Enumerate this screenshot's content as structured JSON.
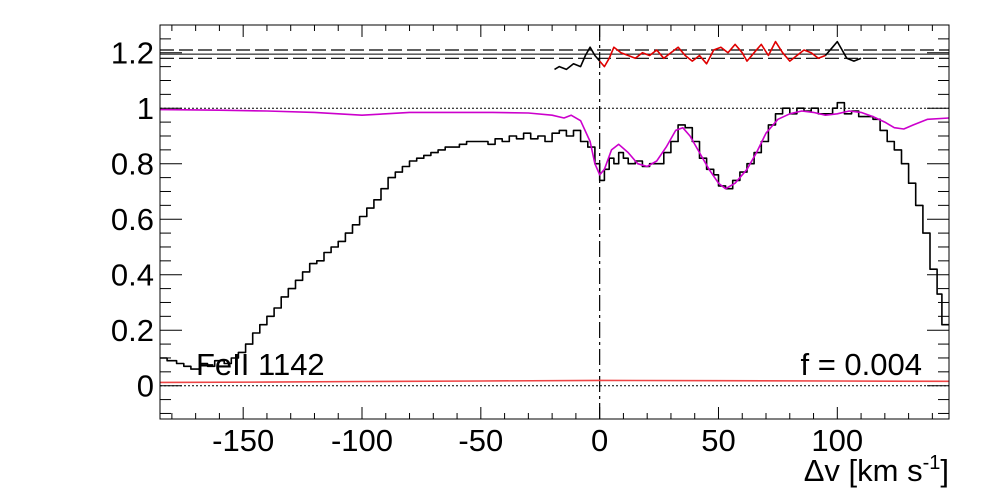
{
  "chart_data": {
    "type": "line",
    "title": "",
    "xlabel": "Δv [km s-1]",
    "xlabel_parts": {
      "prefix": "Δv [km s",
      "sup": "-1",
      "suffix": "]"
    },
    "ylabel": "",
    "xlim": [
      -185,
      147
    ],
    "ylim": [
      -0.12,
      1.3
    ],
    "x_ticks": [
      -150,
      -100,
      -50,
      0,
      50,
      100
    ],
    "x_tick_labels": [
      "-150",
      "-100",
      "-50",
      "0",
      "50",
      "100"
    ],
    "y_ticks": [
      0,
      0.2,
      0.4,
      0.6,
      0.8,
      1,
      1.2
    ],
    "y_tick_labels": [
      "0",
      "0.2",
      "0.4",
      "0.6",
      "0.8",
      "1",
      "1.2"
    ],
    "annotations": [
      {
        "text": "FeII 1142",
        "position": "bottom-left"
      },
      {
        "text": "f = 0.004",
        "position": "bottom-right"
      }
    ],
    "reference_lines": {
      "unity_dotted": 1,
      "zero_dotted": 0,
      "residual_center": 1.195,
      "residual_band": [
        1.18,
        1.21
      ],
      "zero_velocity": 0
    },
    "colors": {
      "data": "#000000",
      "model": "#cc00cc",
      "residual_fit": "#e00000",
      "error": "#ee4444"
    },
    "series": [
      {
        "style": "step",
        "color": "#000000",
        "points": [
          [
            -185,
            0.1
          ],
          [
            -182,
            0.09
          ],
          [
            -178,
            0.08
          ],
          [
            -175,
            0.07
          ],
          [
            -172,
            0.06
          ],
          [
            -168,
            0.08
          ],
          [
            -165,
            0.07
          ],
          [
            -162,
            0.09
          ],
          [
            -158,
            0.08
          ],
          [
            -155,
            0.1
          ],
          [
            -152,
            0.12
          ],
          [
            -149,
            0.15
          ],
          [
            -146,
            0.19
          ],
          [
            -143,
            0.22
          ],
          [
            -140,
            0.25
          ],
          [
            -137,
            0.28
          ],
          [
            -134,
            0.32
          ],
          [
            -131,
            0.35
          ],
          [
            -128,
            0.38
          ],
          [
            -125,
            0.41
          ],
          [
            -122,
            0.44
          ],
          [
            -119,
            0.45
          ],
          [
            -116,
            0.48
          ],
          [
            -113,
            0.5
          ],
          [
            -110,
            0.52
          ],
          [
            -107,
            0.55
          ],
          [
            -104,
            0.58
          ],
          [
            -101,
            0.61
          ],
          [
            -98,
            0.64
          ],
          [
            -95,
            0.67
          ],
          [
            -92,
            0.71
          ],
          [
            -89,
            0.75
          ],
          [
            -86,
            0.77
          ],
          [
            -83,
            0.79
          ],
          [
            -80,
            0.81
          ],
          [
            -77,
            0.82
          ],
          [
            -74,
            0.83
          ],
          [
            -71,
            0.84
          ],
          [
            -68,
            0.85
          ],
          [
            -65,
            0.86
          ],
          [
            -62,
            0.86
          ],
          [
            -59,
            0.87
          ],
          [
            -56,
            0.88
          ],
          [
            -53,
            0.88
          ],
          [
            -50,
            0.88
          ],
          [
            -47,
            0.87
          ],
          [
            -44,
            0.89
          ],
          [
            -41,
            0.88
          ],
          [
            -38,
            0.9
          ],
          [
            -35,
            0.89
          ],
          [
            -32,
            0.91
          ],
          [
            -29,
            0.89
          ],
          [
            -26,
            0.9
          ],
          [
            -23,
            0.88
          ],
          [
            -20,
            0.91
          ],
          [
            -17,
            0.92
          ],
          [
            -14,
            0.9
          ],
          [
            -11,
            0.92
          ],
          [
            -8,
            0.88
          ],
          [
            -5,
            0.86
          ],
          [
            -2,
            0.8
          ],
          [
            0,
            0.74
          ],
          [
            2,
            0.78
          ],
          [
            4,
            0.82
          ],
          [
            6,
            0.8
          ],
          [
            8,
            0.84
          ],
          [
            10,
            0.82
          ],
          [
            12,
            0.8
          ],
          [
            15,
            0.81
          ],
          [
            18,
            0.79
          ],
          [
            21,
            0.8
          ],
          [
            24,
            0.8
          ],
          [
            27,
            0.84
          ],
          [
            30,
            0.88
          ],
          [
            33,
            0.94
          ],
          [
            36,
            0.93
          ],
          [
            39,
            0.88
          ],
          [
            42,
            0.82
          ],
          [
            45,
            0.78
          ],
          [
            48,
            0.76
          ],
          [
            50,
            0.72
          ],
          [
            53,
            0.71
          ],
          [
            56,
            0.74
          ],
          [
            59,
            0.77
          ],
          [
            62,
            0.8
          ],
          [
            65,
            0.84
          ],
          [
            68,
            0.88
          ],
          [
            71,
            0.94
          ],
          [
            74,
            0.98
          ],
          [
            77,
            1.0
          ],
          [
            80,
            0.98
          ],
          [
            83,
            1.0
          ],
          [
            86,
            0.99
          ],
          [
            89,
            1.0
          ],
          [
            92,
            0.98
          ],
          [
            95,
            0.98
          ],
          [
            98,
            1.0
          ],
          [
            100,
            1.02
          ],
          [
            103,
            0.98
          ],
          [
            106,
            0.99
          ],
          [
            109,
            0.97
          ],
          [
            112,
            0.97
          ],
          [
            115,
            0.96
          ],
          [
            118,
            0.92
          ],
          [
            121,
            0.88
          ],
          [
            124,
            0.85
          ],
          [
            127,
            0.8
          ],
          [
            130,
            0.73
          ],
          [
            133,
            0.65
          ],
          [
            136,
            0.55
          ],
          [
            139,
            0.42
          ],
          [
            142,
            0.33
          ],
          [
            144,
            0.22
          ],
          [
            147,
            0.22
          ]
        ]
      },
      {
        "style": "line",
        "color": "#cc00cc",
        "points": [
          [
            -185,
            0.995
          ],
          [
            -160,
            0.993
          ],
          [
            -140,
            0.99
          ],
          [
            -120,
            0.985
          ],
          [
            -100,
            0.975
          ],
          [
            -90,
            0.98
          ],
          [
            -80,
            0.985
          ],
          [
            -60,
            0.985
          ],
          [
            -45,
            0.985
          ],
          [
            -30,
            0.983
          ],
          [
            -20,
            0.975
          ],
          [
            -15,
            0.965
          ],
          [
            -12,
            0.975
          ],
          [
            -8,
            0.955
          ],
          [
            -4,
            0.88
          ],
          [
            -2,
            0.8
          ],
          [
            0,
            0.76
          ],
          [
            2,
            0.78
          ],
          [
            5,
            0.85
          ],
          [
            8,
            0.87
          ],
          [
            12,
            0.84
          ],
          [
            16,
            0.8
          ],
          [
            20,
            0.79
          ],
          [
            24,
            0.81
          ],
          [
            28,
            0.86
          ],
          [
            32,
            0.92
          ],
          [
            35,
            0.93
          ],
          [
            38,
            0.9
          ],
          [
            42,
            0.84
          ],
          [
            46,
            0.78
          ],
          [
            50,
            0.73
          ],
          [
            53,
            0.71
          ],
          [
            57,
            0.73
          ],
          [
            62,
            0.78
          ],
          [
            66,
            0.84
          ],
          [
            70,
            0.91
          ],
          [
            75,
            0.96
          ],
          [
            80,
            0.98
          ],
          [
            85,
            0.99
          ],
          [
            90,
            0.985
          ],
          [
            95,
            0.975
          ],
          [
            100,
            0.98
          ],
          [
            105,
            0.99
          ],
          [
            110,
            0.985
          ],
          [
            115,
            0.97
          ],
          [
            120,
            0.95
          ],
          [
            124,
            0.93
          ],
          [
            128,
            0.925
          ],
          [
            132,
            0.94
          ],
          [
            138,
            0.96
          ],
          [
            147,
            0.965
          ]
        ]
      },
      {
        "style": "line",
        "color": "#000000",
        "points": [
          [
            -19,
            1.14
          ],
          [
            -17,
            1.15
          ],
          [
            -14,
            1.14
          ],
          [
            -11,
            1.16
          ],
          [
            -8,
            1.15
          ],
          [
            -6,
            1.19
          ],
          [
            -4,
            1.22
          ],
          [
            -2,
            1.19
          ],
          [
            0,
            1.17
          ]
        ]
      },
      {
        "style": "line",
        "color": "#e00000",
        "points": [
          [
            0,
            1.17
          ],
          [
            2,
            1.15
          ],
          [
            4,
            1.18
          ],
          [
            6,
            1.22
          ],
          [
            9,
            1.2
          ],
          [
            12,
            1.19
          ],
          [
            15,
            1.18
          ],
          [
            18,
            1.2
          ],
          [
            21,
            1.19
          ],
          [
            24,
            1.21
          ],
          [
            27,
            1.18
          ],
          [
            30,
            1.2
          ],
          [
            33,
            1.22
          ],
          [
            36,
            1.19
          ],
          [
            39,
            1.17
          ],
          [
            42,
            1.19
          ],
          [
            45,
            1.16
          ],
          [
            48,
            1.21
          ],
          [
            51,
            1.22
          ],
          [
            54,
            1.2
          ],
          [
            57,
            1.23
          ],
          [
            60,
            1.2
          ],
          [
            62,
            1.17
          ],
          [
            65,
            1.2
          ],
          [
            68,
            1.23
          ],
          [
            71,
            1.19
          ],
          [
            74,
            1.24
          ],
          [
            77,
            1.2
          ],
          [
            80,
            1.17
          ],
          [
            83,
            1.19
          ],
          [
            86,
            1.21
          ],
          [
            89,
            1.2
          ],
          [
            92,
            1.18
          ],
          [
            95,
            1.19
          ]
        ]
      },
      {
        "style": "line",
        "color": "#000000",
        "points": [
          [
            95,
            1.19
          ],
          [
            98,
            1.22
          ],
          [
            100,
            1.24
          ],
          [
            102,
            1.21
          ],
          [
            104,
            1.18
          ],
          [
            107,
            1.17
          ],
          [
            110,
            1.18
          ]
        ]
      },
      {
        "style": "line",
        "color": "#ee4444",
        "points": [
          [
            -185,
            0.012
          ],
          [
            -140,
            0.013
          ],
          [
            -100,
            0.015
          ],
          [
            -50,
            0.017
          ],
          [
            0,
            0.019
          ],
          [
            50,
            0.018
          ],
          [
            100,
            0.017
          ],
          [
            147,
            0.016
          ]
        ]
      }
    ]
  }
}
